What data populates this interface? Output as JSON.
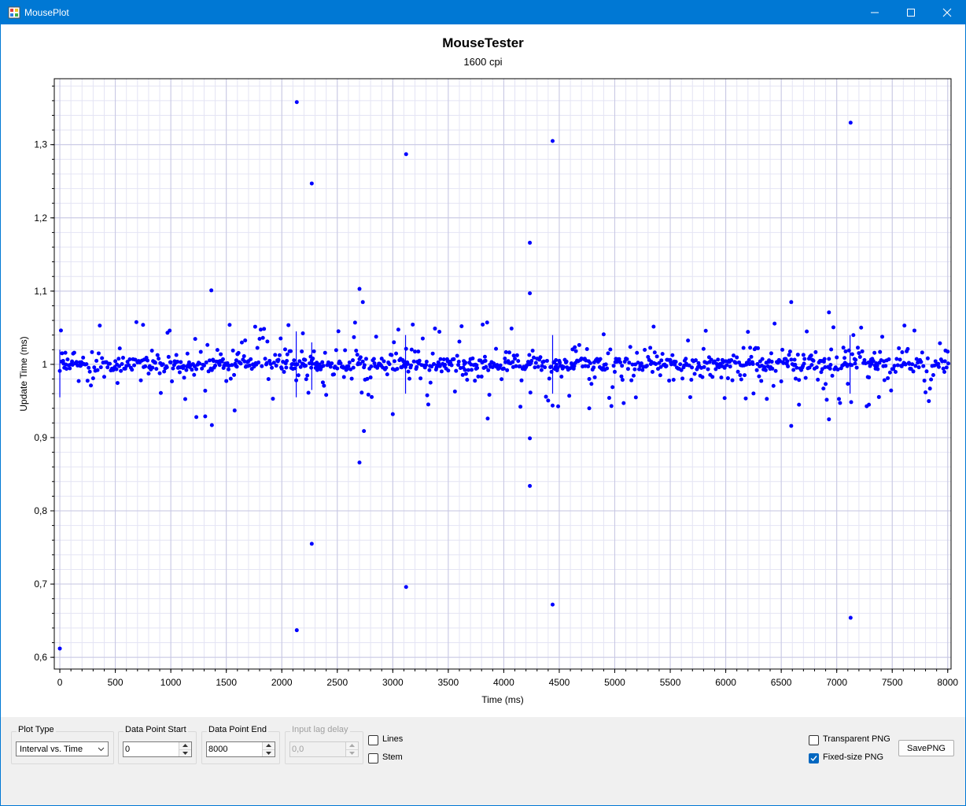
{
  "window": {
    "title": "MousePlot"
  },
  "chart_data": {
    "type": "scatter",
    "title": "MouseTester",
    "subtitle": "1600 cpi",
    "xlabel": "Time (ms)",
    "ylabel": "Update Time (ms)",
    "xlim": [
      -50,
      8030
    ],
    "ylim": [
      0.584,
      1.39
    ],
    "x_ticks": [
      "0",
      "500",
      "1000",
      "1500",
      "2000",
      "2500",
      "3000",
      "3500",
      "4000",
      "4500",
      "5000",
      "5500",
      "6000",
      "6500",
      "7000",
      "7500",
      "8000"
    ],
    "y_ticks": [
      "0,6",
      "0,7",
      "0,8",
      "0,9",
      "1",
      "1,1",
      "1,2",
      "1,3"
    ],
    "grid": true,
    "color": "#0000ff",
    "baseline": 1.0,
    "outliers": [
      {
        "x": 0,
        "y": 0.612
      },
      {
        "x": 2135,
        "y": 1.358
      },
      {
        "x": 2135,
        "y": 0.637
      },
      {
        "x": 2270,
        "y": 1.247
      },
      {
        "x": 2270,
        "y": 0.755
      },
      {
        "x": 2700,
        "y": 1.103
      },
      {
        "x": 2700,
        "y": 0.866
      },
      {
        "x": 2730,
        "y": 1.085
      },
      {
        "x": 2740,
        "y": 0.909
      },
      {
        "x": 3120,
        "y": 1.287
      },
      {
        "x": 3120,
        "y": 0.696
      },
      {
        "x": 4235,
        "y": 1.166
      },
      {
        "x": 4235,
        "y": 1.097
      },
      {
        "x": 4235,
        "y": 0.899
      },
      {
        "x": 4235,
        "y": 0.834
      },
      {
        "x": 4440,
        "y": 1.305
      },
      {
        "x": 4440,
        "y": 0.672
      },
      {
        "x": 7125,
        "y": 1.33
      },
      {
        "x": 7125,
        "y": 0.654
      },
      {
        "x": 1365,
        "y": 1.101
      },
      {
        "x": 1370,
        "y": 0.917
      },
      {
        "x": 1230,
        "y": 0.928
      },
      {
        "x": 1310,
        "y": 0.929
      },
      {
        "x": 1575,
        "y": 0.937
      },
      {
        "x": 3000,
        "y": 0.932
      },
      {
        "x": 3855,
        "y": 0.926
      },
      {
        "x": 4770,
        "y": 0.94
      },
      {
        "x": 6590,
        "y": 1.085
      },
      {
        "x": 6590,
        "y": 0.916
      },
      {
        "x": 6930,
        "y": 1.071
      },
      {
        "x": 6930,
        "y": 0.925
      },
      {
        "x": 5990,
        "y": 0.954
      },
      {
        "x": 6660,
        "y": 0.945
      },
      {
        "x": 7290,
        "y": 0.945
      }
    ],
    "stems": [
      {
        "x": 0,
        "y1": 0.955,
        "y2": 1.02
      },
      {
        "x": 2130,
        "y1": 0.955,
        "y2": 1.045
      },
      {
        "x": 2270,
        "y1": 0.965,
        "y2": 1.03
      },
      {
        "x": 3115,
        "y1": 0.96,
        "y2": 1.04
      },
      {
        "x": 4440,
        "y1": 0.96,
        "y2": 1.04
      },
      {
        "x": 7120,
        "y1": 0.96,
        "y2": 1.04
      }
    ]
  },
  "controls": {
    "plot_type": {
      "label": "Plot Type",
      "value": "Interval vs. Time"
    },
    "data_start": {
      "label": "Data Point Start",
      "value": "0"
    },
    "data_end": {
      "label": "Data Point End",
      "value": "8000"
    },
    "lag_delay": {
      "label": "Input lag delay",
      "value": "0,0"
    },
    "lines": {
      "label": "Lines",
      "checked": false
    },
    "stem": {
      "label": "Stem",
      "checked": false
    },
    "transparent_png": {
      "label": "Transparent PNG",
      "checked": false
    },
    "fixed_png": {
      "label": "Fixed-size PNG",
      "checked": true
    },
    "save_label": "SavePNG"
  }
}
